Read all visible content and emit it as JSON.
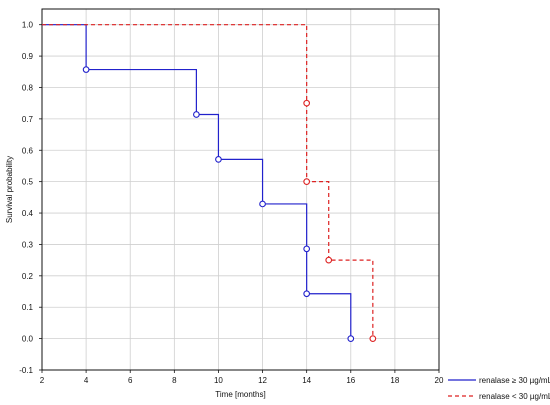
{
  "chart_data": {
    "type": "line",
    "chart_style": "kaplan-meier step plot with circle markers",
    "title": "",
    "xlabel": "Time [months]",
    "ylabel": "Survival probability",
    "xlim": [
      2,
      20
    ],
    "ylim": [
      -0.1,
      1.05
    ],
    "x_ticks": [
      2,
      4,
      6,
      8,
      10,
      12,
      14,
      16,
      18,
      20
    ],
    "y_ticks": [
      -0.1,
      0.0,
      0.1,
      0.2,
      0.3,
      0.4,
      0.5,
      0.6,
      0.7,
      0.8,
      0.9,
      1.0
    ],
    "x_tick_labels": [
      "2",
      "4",
      "6",
      "8",
      "10",
      "12",
      "14",
      "16",
      "18",
      "20"
    ],
    "y_tick_labels": [
      "-0.1",
      "0.0",
      "0.1",
      "0.2",
      "0.3",
      "0.4",
      "0.5",
      "0.6",
      "0.7",
      "0.8",
      "0.9",
      "1.0"
    ],
    "grid": true,
    "legend_position": "bottom-right outside plot",
    "series": [
      {
        "name": "renalase ≥ 30 µg/mL",
        "color": "#2222cc",
        "line_style": "solid",
        "start": [
          2,
          1.0
        ],
        "steps": [
          {
            "x": 4,
            "y": 0.857
          },
          {
            "x": 9,
            "y": 0.714
          },
          {
            "x": 10,
            "y": 0.571
          },
          {
            "x": 12,
            "y": 0.429
          },
          {
            "x": 14,
            "y": 0.286
          },
          {
            "x": 14,
            "y": 0.143
          },
          {
            "x": 16,
            "y": 0.0
          }
        ]
      },
      {
        "name": "renalase < 30 µg/mL",
        "color": "#dd2222",
        "line_style": "dashed",
        "start": [
          2,
          1.0
        ],
        "steps": [
          {
            "x": 14,
            "y": 0.75
          },
          {
            "x": 14,
            "y": 0.5
          },
          {
            "x": 15,
            "y": 0.25
          },
          {
            "x": 17,
            "y": 0.0
          }
        ]
      }
    ]
  }
}
